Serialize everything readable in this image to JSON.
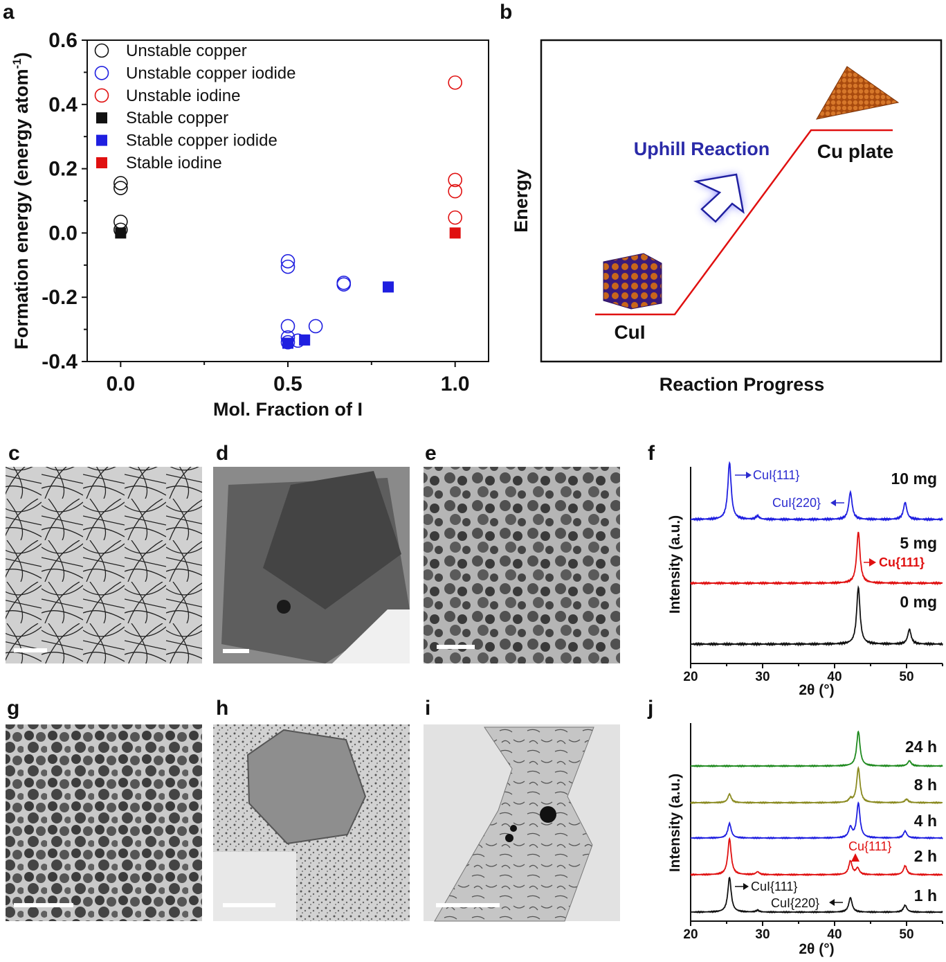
{
  "panel_labels": {
    "a": "a",
    "b": "b",
    "c": "c",
    "d": "d",
    "e": "e",
    "f": "f",
    "g": "g",
    "h": "h",
    "i": "i",
    "j": "j"
  },
  "colors": {
    "black": "#111111",
    "blue": "#1f1fe0",
    "red": "#e01010",
    "olive": "#8a8a20",
    "green": "#1f8a1f",
    "tem_bg": "#a8a8a8"
  },
  "chart_data": [
    {
      "id": "a",
      "type": "scatter",
      "xlabel": "Mol. Fraction of I",
      "ylabel": "Formation energy (energy atom",
      "ylabel_sup": "-1",
      "ylabel_close": ")",
      "xlim": [
        -0.1,
        1.1
      ],
      "ylim": [
        -0.4,
        0.6
      ],
      "xticks": [
        {
          "v": 0.0,
          "label": "0.0"
        },
        {
          "v": 0.5,
          "label": "0.5"
        },
        {
          "v": 1.0,
          "label": "1.0"
        }
      ],
      "yticks": [
        {
          "v": 0.6,
          "label": "0.6"
        },
        {
          "v": 0.4,
          "label": "0.4"
        },
        {
          "v": 0.2,
          "label": "0.2"
        },
        {
          "v": 0.0,
          "label": "0.0"
        },
        {
          "v": -0.2,
          "label": "-0.2"
        },
        {
          "v": -0.4,
          "label": "-0.4"
        }
      ],
      "legend": [
        {
          "label": "Unstable copper",
          "marker": "circle",
          "color": "#111111"
        },
        {
          "label": "Unstable copper iodide",
          "marker": "circle",
          "color": "#1f1fe0"
        },
        {
          "label": "Unstable iodine",
          "marker": "circle",
          "color": "#e01010"
        },
        {
          "label": "Stable copper",
          "marker": "square",
          "color": "#111111"
        },
        {
          "label": "Stable copper iodide",
          "marker": "square",
          "color": "#1f1fe0"
        },
        {
          "label": "Stable iodine",
          "marker": "square",
          "color": "#e01010"
        }
      ],
      "series": [
        {
          "name": "Unstable copper",
          "marker": "circle",
          "color": "#111111",
          "points": [
            [
              0,
              0.155
            ],
            [
              0,
              0.14
            ],
            [
              0,
              0.035
            ],
            [
              0,
              0.01
            ]
          ]
        },
        {
          "name": "Unstable copper iodide",
          "marker": "circle",
          "color": "#1f1fe0",
          "points": [
            [
              0.5,
              -0.088
            ],
            [
              0.5,
              -0.105
            ],
            [
              0.667,
              -0.155
            ],
            [
              0.667,
              -0.16
            ],
            [
              0.5,
              -0.29
            ],
            [
              0.583,
              -0.29
            ],
            [
              0.5,
              -0.325
            ],
            [
              0.5,
              -0.34
            ],
            [
              0.53,
              -0.335
            ]
          ]
        },
        {
          "name": "Unstable iodine",
          "marker": "circle",
          "color": "#e01010",
          "points": [
            [
              1,
              0.468
            ],
            [
              1,
              0.165
            ],
            [
              1,
              0.13
            ],
            [
              1,
              0.048
            ]
          ]
        },
        {
          "name": "Stable copper",
          "marker": "square",
          "color": "#111111",
          "points": [
            [
              0,
              0.0
            ]
          ]
        },
        {
          "name": "Stable copper iodide",
          "marker": "square",
          "color": "#1f1fe0",
          "points": [
            [
              0.8,
              -0.168
            ],
            [
              0.5,
              -0.343
            ],
            [
              0.55,
              -0.333
            ]
          ]
        },
        {
          "name": "Stable iodine",
          "marker": "square",
          "color": "#e01010",
          "points": [
            [
              1,
              0.0
            ]
          ]
        }
      ]
    },
    {
      "id": "f",
      "type": "line",
      "xlabel": "2θ (°)",
      "ylabel": "Intensity (a.u.)",
      "xlim": [
        20,
        55
      ],
      "xticks": [
        20,
        30,
        40,
        50
      ],
      "series": [
        {
          "name": "10 mg",
          "color": "#1f1fe0",
          "peaks": [
            [
              25.4,
              1.0
            ],
            [
              29.3,
              0.06
            ],
            [
              42.2,
              0.48
            ],
            [
              49.8,
              0.3
            ]
          ]
        },
        {
          "name": "5 mg",
          "color": "#e01010",
          "peaks": [
            [
              43.3,
              1.0
            ]
          ]
        },
        {
          "name": "0 mg",
          "color": "#111111",
          "peaks": [
            [
              43.3,
              1.0
            ],
            [
              50.4,
              0.26
            ]
          ]
        }
      ],
      "annotations": [
        {
          "text": "CuI{111}",
          "color": "#2a2ad0"
        },
        {
          "text": "CuI{220}",
          "color": "#2a2ad0"
        },
        {
          "text": "Cu{111}",
          "color": "#e01010"
        }
      ]
    },
    {
      "id": "j",
      "type": "line",
      "xlabel": "2θ (°)",
      "ylabel": "Intensity (a.u.)",
      "xlim": [
        20,
        55
      ],
      "xticks": [
        20,
        30,
        40,
        50
      ],
      "series": [
        {
          "name": "24 h",
          "color": "#1f8a1f",
          "peaks": [
            [
              43.3,
              1.0
            ],
            [
              50.4,
              0.15
            ]
          ]
        },
        {
          "name": "8 h",
          "color": "#8a8a20",
          "peaks": [
            [
              25.4,
              0.25
            ],
            [
              42.2,
              0.1
            ],
            [
              43.3,
              1.0
            ],
            [
              50.0,
              0.1
            ]
          ]
        },
        {
          "name": "4 h",
          "color": "#1f1fe0",
          "peaks": [
            [
              25.4,
              0.42
            ],
            [
              42.2,
              0.3
            ],
            [
              43.3,
              1.0
            ],
            [
              49.8,
              0.2
            ]
          ]
        },
        {
          "name": "2 h",
          "color": "#e01010",
          "peaks": [
            [
              25.4,
              1.0
            ],
            [
              29.3,
              0.08
            ],
            [
              42.2,
              0.38
            ],
            [
              43.2,
              0.18
            ],
            [
              49.8,
              0.25
            ]
          ]
        },
        {
          "name": "1 h",
          "color": "#111111",
          "peaks": [
            [
              25.4,
              1.0
            ],
            [
              29.3,
              0.05
            ],
            [
              42.2,
              0.42
            ],
            [
              49.8,
              0.2
            ]
          ]
        }
      ],
      "annotations": [
        {
          "text": "CuI{111}",
          "color": "#111111"
        },
        {
          "text": "CuI{220}",
          "color": "#111111"
        },
        {
          "text": "Cu{111}",
          "color": "#e01010"
        }
      ]
    }
  ],
  "panel_b": {
    "xlabel": "Reaction Progress",
    "ylabel": "Energy",
    "start_label": "CuI",
    "end_label": "Cu plate",
    "arrow_label": "Uphill Reaction"
  }
}
